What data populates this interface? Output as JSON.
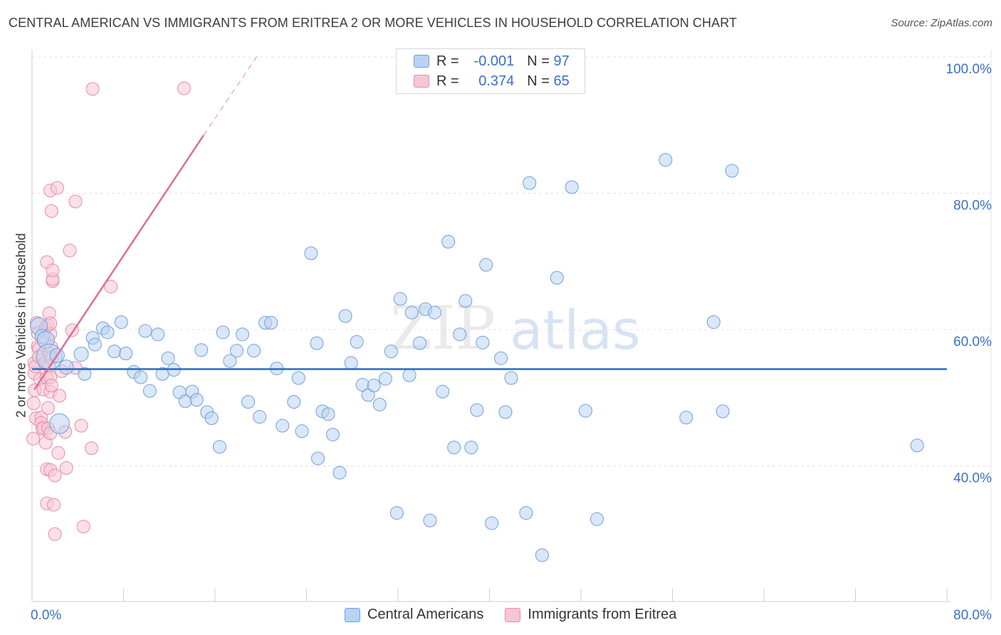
{
  "title": "CENTRAL AMERICAN VS IMMIGRANTS FROM ERITREA 2 OR MORE VEHICLES IN HOUSEHOLD CORRELATION CHART",
  "source": "Source: ZipAtlas.com",
  "watermark": {
    "zip": "ZIP",
    "atlas": "atlas"
  },
  "colors": {
    "blue_fill": "#b9d3f3",
    "blue_stroke": "#6f9fdc",
    "blue_line": "#2a6ac8",
    "pink_fill": "#f7c6d5",
    "pink_stroke": "#e88aa8",
    "pink_line": "#e06c94",
    "axis_label": "#3a6fc9",
    "grid": "#e3e3e3"
  },
  "legend": {
    "rows": [
      {
        "r_label": "R =",
        "r_value": "-0.001",
        "n_label": "N =",
        "n_value": "97",
        "series": "blue"
      },
      {
        "r_label": "R =",
        "r_value": "0.374",
        "n_label": "N =",
        "n_value": "65",
        "series": "pink"
      }
    ]
  },
  "bottom_legend": [
    "Central Americans",
    "Immigrants from Eritrea"
  ],
  "chart_data": {
    "type": "scatter",
    "title": "CENTRAL AMERICAN VS IMMIGRANTS FROM ERITREA 2 OR MORE VEHICLES IN HOUSEHOLD CORRELATION CHART",
    "xlabel": "",
    "ylabel": "2 or more Vehicles in Household",
    "xlim": [
      0,
      80
    ],
    "ylim": [
      20,
      102
    ],
    "x_tick_labels": [
      "0.0%",
      "80.0%"
    ],
    "y_ticks": [
      40,
      60,
      80,
      100
    ],
    "y_tick_labels": [
      "40.0%",
      "60.0%",
      "80.0%",
      "100.0%"
    ],
    "grid": true,
    "legend_position": "top-center",
    "series": [
      {
        "name": "Central Americans",
        "color": "#6f9fdc",
        "trend": {
          "x": [
            0,
            80
          ],
          "y": [
            54.2,
            54.2
          ]
        },
        "points": [
          [
            0.6,
            60.5,
            12
          ],
          [
            0.9,
            59.0,
            10
          ],
          [
            1.2,
            58.5,
            12
          ],
          [
            1.5,
            56.0,
            18
          ],
          [
            2.2,
            56.2,
            10
          ],
          [
            2.4,
            46.2,
            14
          ],
          [
            3.0,
            54.5,
            10
          ],
          [
            4.3,
            56.4,
            10
          ],
          [
            4.6,
            53.5,
            9
          ],
          [
            5.3,
            58.8,
            9
          ],
          [
            5.5,
            57.8,
            9
          ],
          [
            6.2,
            60.2,
            9
          ],
          [
            6.6,
            59.6,
            9
          ],
          [
            7.2,
            56.8,
            9
          ],
          [
            7.8,
            61.1,
            9
          ],
          [
            8.2,
            56.5,
            9
          ],
          [
            8.9,
            53.8,
            9
          ],
          [
            9.5,
            53.0,
            9
          ],
          [
            9.9,
            59.8,
            9
          ],
          [
            10.3,
            51.0,
            9
          ],
          [
            11.0,
            59.3,
            9
          ],
          [
            11.4,
            53.5,
            9
          ],
          [
            11.9,
            55.8,
            9
          ],
          [
            12.4,
            54.1,
            9
          ],
          [
            12.9,
            50.8,
            9
          ],
          [
            13.4,
            49.5,
            9
          ],
          [
            14.0,
            50.9,
            9
          ],
          [
            14.4,
            49.7,
            9
          ],
          [
            14.8,
            57.0,
            9
          ],
          [
            15.3,
            47.9,
            9
          ],
          [
            15.7,
            47.0,
            9
          ],
          [
            16.4,
            42.8,
            9
          ],
          [
            16.7,
            59.6,
            9
          ],
          [
            17.3,
            55.4,
            9
          ],
          [
            17.9,
            56.9,
            9
          ],
          [
            18.4,
            59.3,
            9
          ],
          [
            18.9,
            49.4,
            9
          ],
          [
            19.4,
            56.9,
            9
          ],
          [
            19.9,
            47.2,
            9
          ],
          [
            20.4,
            61.0,
            9
          ],
          [
            20.9,
            61.0,
            9
          ],
          [
            21.4,
            54.3,
            9
          ],
          [
            21.9,
            45.9,
            9
          ],
          [
            22.9,
            49.4,
            9
          ],
          [
            23.3,
            52.9,
            9
          ],
          [
            23.6,
            45.1,
            9
          ],
          [
            24.4,
            71.2,
            9
          ],
          [
            24.9,
            58.0,
            9
          ],
          [
            25.0,
            41.1,
            9
          ],
          [
            25.4,
            48.0,
            9
          ],
          [
            25.9,
            47.6,
            9
          ],
          [
            26.3,
            44.6,
            9
          ],
          [
            26.9,
            39.0,
            9
          ],
          [
            27.4,
            62.0,
            9
          ],
          [
            27.9,
            55.1,
            9
          ],
          [
            28.4,
            58.2,
            9
          ],
          [
            28.9,
            51.9,
            9
          ],
          [
            29.4,
            50.4,
            9
          ],
          [
            29.9,
            51.8,
            9
          ],
          [
            30.4,
            49.0,
            9
          ],
          [
            30.9,
            52.8,
            9
          ],
          [
            31.4,
            56.8,
            9
          ],
          [
            31.9,
            33.1,
            9
          ],
          [
            32.2,
            64.5,
            9
          ],
          [
            33.0,
            53.3,
            9
          ],
          [
            33.2,
            62.5,
            9
          ],
          [
            33.9,
            58.0,
            9
          ],
          [
            34.4,
            63.0,
            9
          ],
          [
            34.8,
            32.0,
            9
          ],
          [
            35.2,
            62.5,
            9
          ],
          [
            35.9,
            50.9,
            9
          ],
          [
            36.4,
            72.9,
            9
          ],
          [
            36.9,
            42.7,
            9
          ],
          [
            37.4,
            59.3,
            9
          ],
          [
            37.9,
            64.2,
            9
          ],
          [
            38.4,
            42.7,
            9
          ],
          [
            38.9,
            48.2,
            9
          ],
          [
            39.4,
            58.1,
            9
          ],
          [
            39.7,
            69.5,
            9
          ],
          [
            40.2,
            31.6,
            9
          ],
          [
            41.0,
            55.8,
            9
          ],
          [
            41.4,
            47.9,
            9
          ],
          [
            41.9,
            52.9,
            9
          ],
          [
            43.2,
            33.1,
            9
          ],
          [
            43.5,
            81.5,
            9
          ],
          [
            44.6,
            26.9,
            9
          ],
          [
            45.9,
            67.6,
            9
          ],
          [
            47.2,
            80.9,
            9
          ],
          [
            48.4,
            48.1,
            9
          ],
          [
            49.4,
            32.2,
            9
          ],
          [
            55.4,
            84.9,
            9
          ],
          [
            57.2,
            47.1,
            9
          ],
          [
            59.6,
            61.1,
            9
          ],
          [
            60.4,
            48.0,
            9
          ],
          [
            61.2,
            83.3,
            9
          ],
          [
            77.4,
            43.0,
            9
          ]
        ]
      },
      {
        "name": "Immigrants from Eritrea",
        "color": "#e88aa8",
        "trend": {
          "x": [
            0.2,
            15.0
          ],
          "y": [
            51.2,
            88.5
          ],
          "dash_x": [
            15.0,
            19.8
          ],
          "dash_y": [
            88.5,
            100.4
          ]
        },
        "points": [
          [
            0.1,
            44.0,
            9
          ],
          [
            0.15,
            49.2,
            9
          ],
          [
            0.2,
            55.1,
            9
          ],
          [
            0.2,
            53.6,
            9
          ],
          [
            0.25,
            51.1,
            9
          ],
          [
            0.3,
            54.6,
            9
          ],
          [
            0.35,
            47.0,
            9
          ],
          [
            0.4,
            61.0,
            9
          ],
          [
            0.5,
            59.5,
            9
          ],
          [
            0.5,
            57.5,
            9
          ],
          [
            0.6,
            57.2,
            9
          ],
          [
            0.6,
            56.0,
            9
          ],
          [
            0.7,
            52.7,
            9
          ],
          [
            0.8,
            47.1,
            9
          ],
          [
            0.8,
            46.3,
            9
          ],
          [
            0.9,
            45.4,
            9
          ],
          [
            1.0,
            51.2,
            9
          ],
          [
            1.0,
            45.6,
            9
          ],
          [
            1.1,
            58.2,
            9
          ],
          [
            1.1,
            55.1,
            9
          ],
          [
            1.2,
            60.3,
            9
          ],
          [
            1.2,
            43.4,
            9
          ],
          [
            1.3,
            34.5,
            9
          ],
          [
            1.3,
            39.5,
            9
          ],
          [
            1.3,
            53.0,
            9
          ],
          [
            1.3,
            69.9,
            9
          ],
          [
            1.4,
            60.6,
            9
          ],
          [
            1.4,
            48.5,
            9
          ],
          [
            1.4,
            45.5,
            9
          ],
          [
            1.5,
            56.5,
            9
          ],
          [
            1.5,
            54.6,
            9
          ],
          [
            1.5,
            62.4,
            9
          ],
          [
            1.6,
            59.4,
            9
          ],
          [
            1.6,
            60.9,
            9
          ],
          [
            1.6,
            53.0,
            9
          ],
          [
            1.6,
            44.8,
            9
          ],
          [
            1.6,
            50.9,
            9
          ],
          [
            1.6,
            39.4,
            9
          ],
          [
            1.6,
            80.4,
            9
          ],
          [
            1.7,
            77.4,
            9
          ],
          [
            1.7,
            57.4,
            9
          ],
          [
            1.7,
            55.9,
            9
          ],
          [
            1.7,
            51.8,
            9
          ],
          [
            1.8,
            67.1,
            9
          ],
          [
            1.8,
            67.4,
            9
          ],
          [
            1.8,
            68.7,
            9
          ],
          [
            1.9,
            34.3,
            9
          ],
          [
            2.0,
            30.0,
            9
          ],
          [
            2.0,
            38.6,
            9
          ],
          [
            2.2,
            80.8,
            9
          ],
          [
            2.3,
            41.9,
            9
          ],
          [
            2.4,
            50.3,
            9
          ],
          [
            2.6,
            53.9,
            9
          ],
          [
            2.9,
            45.0,
            9
          ],
          [
            3.0,
            39.7,
            9
          ],
          [
            3.3,
            71.6,
            9
          ],
          [
            3.5,
            59.9,
            9
          ],
          [
            3.8,
            54.4,
            9
          ],
          [
            3.8,
            78.8,
            9
          ],
          [
            4.3,
            45.9,
            9
          ],
          [
            4.5,
            31.1,
            9
          ],
          [
            5.2,
            42.6,
            9
          ],
          [
            5.3,
            95.3,
            9
          ],
          [
            6.9,
            66.3,
            9
          ],
          [
            13.3,
            95.4,
            9
          ]
        ]
      }
    ]
  }
}
